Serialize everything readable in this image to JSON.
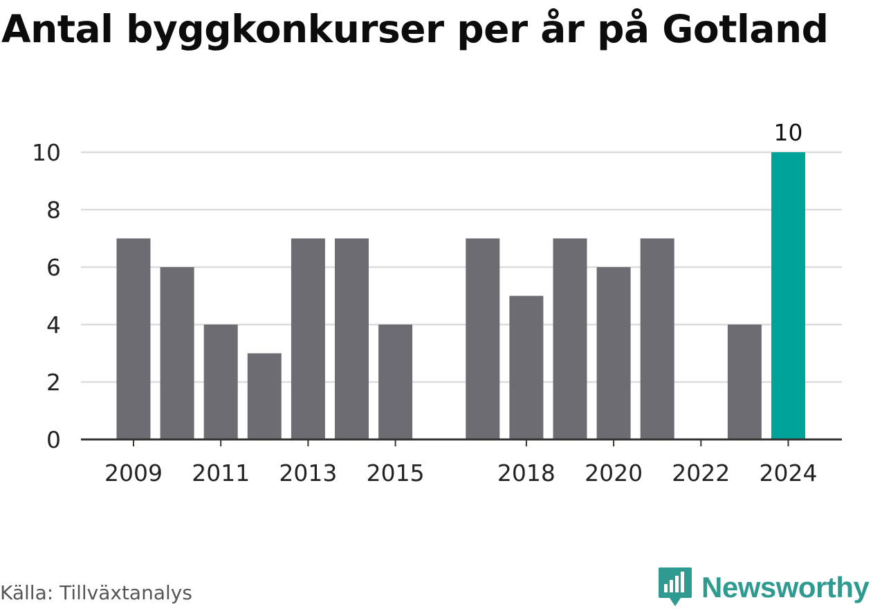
{
  "title": "Antal byggkonkurser per år på Gotland",
  "source": "Källa: Tillväxtanalys",
  "brand": {
    "name": "Newsworthy",
    "logo_icon": "bar-chart-speech-bubble-icon",
    "color": "#2f9a90"
  },
  "chart_data": {
    "type": "bar",
    "title": "Antal byggkonkurser per år på Gotland",
    "xlabel": "",
    "ylabel": "",
    "categories": [
      "2009",
      "2010",
      "2011",
      "2012",
      "2013",
      "2014",
      "2015",
      "2016",
      "2017",
      "2018",
      "2019",
      "2020",
      "2021",
      "2022",
      "2023",
      "2024"
    ],
    "values": [
      7,
      6,
      4,
      3,
      7,
      7,
      4,
      0,
      7,
      5,
      7,
      6,
      7,
      0,
      4,
      10
    ],
    "x_tick_labels": [
      "2009",
      "2011",
      "2013",
      "2015",
      "2018",
      "2020",
      "2022",
      "2024"
    ],
    "y_ticks": [
      0,
      2,
      4,
      6,
      8,
      10
    ],
    "ylim": [
      0,
      10
    ],
    "grid": "horizontal",
    "bar_color": "#6d6c72",
    "highlight_color": "#00a398",
    "highlight_category": "2024",
    "data_labels": [
      {
        "category": "2024",
        "text": "10"
      }
    ]
  }
}
